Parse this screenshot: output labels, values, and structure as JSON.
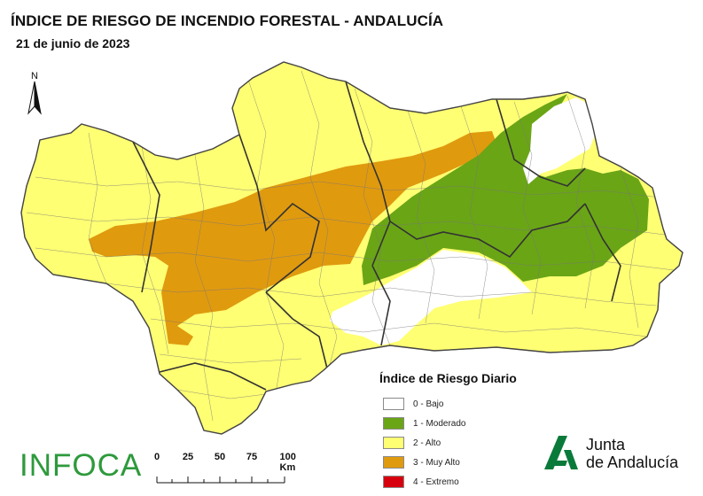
{
  "title": "ÍNDICE DE RIESGO DE INCENDIO FORESTAL - ANDALUCÍA",
  "date": "21 de junio de 2023",
  "north_arrow": {
    "letter": "N"
  },
  "legend": {
    "title": "Índice de Riesgo Diario",
    "items": [
      {
        "label": "0 - Bajo",
        "color": "#ffffff"
      },
      {
        "label": "1 - Moderado",
        "color": "#6aa516"
      },
      {
        "label": "2 - Alto",
        "color": "#ffff73"
      },
      {
        "label": "3 - Muy Alto",
        "color": "#e09a0e"
      },
      {
        "label": "4 - Extremo",
        "color": "#d7000f"
      }
    ]
  },
  "scale_bar": {
    "ticks": [
      "0",
      "25",
      "50",
      "75",
      "100 Km"
    ]
  },
  "brand_left": "INFOCA",
  "brand_right": {
    "line1": "Junta",
    "line2": "de Andalucía"
  },
  "colors": {
    "bajo": "#ffffff",
    "moderado": "#6aa516",
    "alto": "#ffff73",
    "muy_alto": "#e09a0e",
    "extremo": "#d7000f",
    "border": "#555555",
    "province_border": "#333333",
    "brand_green": "#2e9a3c",
    "logo_green": "#0a7a3a"
  }
}
